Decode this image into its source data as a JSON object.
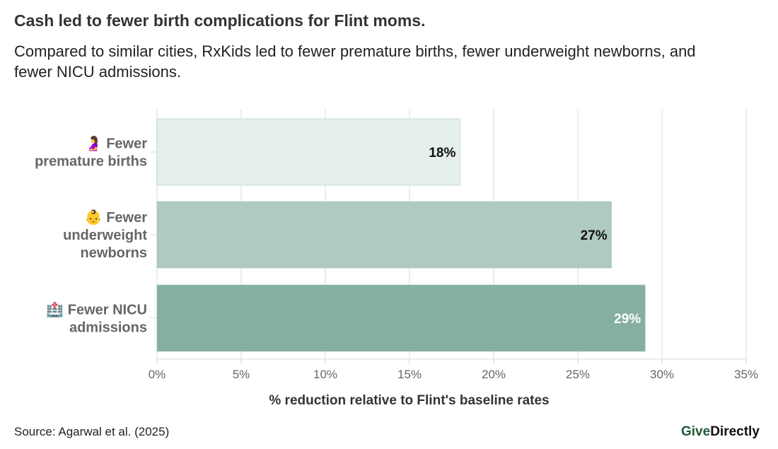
{
  "title": "Cash led to fewer birth complications for Flint moms.",
  "subtitle": "Compared to similar cities, RxKids led to fewer premature births, fewer underweight newborns, and fewer NICU admissions.",
  "source": "Source: Agarwal et al. (2025)",
  "logo": {
    "part1": "Give",
    "part2": "Directly"
  },
  "chart_data": {
    "type": "bar",
    "orientation": "horizontal",
    "categories": [
      [
        "🤰 Fewer",
        "premature births"
      ],
      [
        "👶 Fewer",
        "underweight",
        "newborns"
      ],
      [
        "🏥 Fewer NICU",
        "admissions"
      ]
    ],
    "values": [
      18,
      27,
      29
    ],
    "data_labels": [
      "18%",
      "27%",
      "29%"
    ],
    "bar_colors": [
      "#e5efec",
      "#afcac3",
      "#86afa4"
    ],
    "label_colors": [
      "#111111",
      "#111111",
      "#ffffff"
    ],
    "xlabel": "% reduction relative to Flint's baseline rates",
    "xlim": [
      0,
      35
    ],
    "xticks": [
      0,
      5,
      10,
      15,
      20,
      25,
      30,
      35
    ],
    "xtick_labels": [
      "0%",
      "5%",
      "10%",
      "15%",
      "20%",
      "25%",
      "30%",
      "35%"
    ],
    "grid": true
  }
}
